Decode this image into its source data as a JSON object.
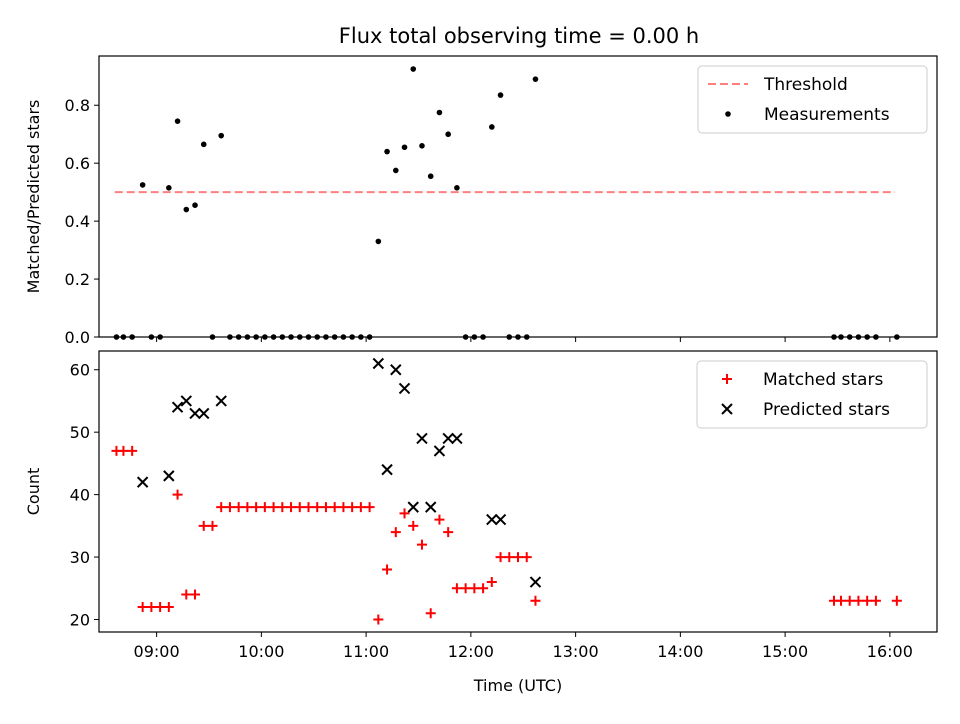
{
  "title": "Flux total observing time = 0.00 h",
  "chart_data": [
    {
      "type": "scatter",
      "ylabel": "Matched/Predicted stars",
      "xlim": [
        "08:27",
        "16:27"
      ],
      "ylim": [
        0,
        0.97
      ],
      "yticks": [
        "0.0",
        "0.2",
        "0.4",
        "0.6",
        "0.8"
      ],
      "grid": false,
      "legend_position": "top-right",
      "series": [
        {
          "name": "Threshold",
          "style": "dashed-line",
          "color": "#ff7f7f",
          "x": [
            "08:36",
            "16:03"
          ],
          "y": [
            0.5,
            0.5
          ]
        },
        {
          "name": "Measurements",
          "style": "dot",
          "color": "#000000",
          "x": [
            "08:37",
            "08:41",
            "08:46",
            "08:52",
            "08:57",
            "09:02",
            "09:07",
            "09:12",
            "09:17",
            "09:22",
            "09:27",
            "09:32",
            "09:37",
            "09:42",
            "09:47",
            "09:52",
            "09:57",
            "10:02",
            "10:07",
            "10:12",
            "10:17",
            "10:22",
            "10:27",
            "10:32",
            "10:37",
            "10:42",
            "10:47",
            "10:52",
            "10:57",
            "11:02",
            "11:07",
            "11:12",
            "11:17",
            "11:22",
            "11:27",
            "11:32",
            "11:37",
            "11:42",
            "11:47",
            "11:52",
            "11:57",
            "12:02",
            "12:07",
            "12:12",
            "12:17",
            "12:22",
            "12:27",
            "12:32",
            "12:37",
            "15:28",
            "15:32",
            "15:37",
            "15:42",
            "15:47",
            "15:52",
            "16:04"
          ],
          "y": [
            0,
            0,
            0,
            0.525,
            0,
            0,
            0.515,
            0.745,
            0.44,
            0.455,
            0.665,
            0,
            0.695,
            0,
            0,
            0,
            0,
            0,
            0,
            0,
            0,
            0,
            0,
            0,
            0,
            0,
            0,
            0,
            0,
            0,
            0.33,
            0.64,
            0.575,
            0.655,
            0.925,
            0.66,
            0.555,
            0.775,
            0.7,
            0.515,
            0,
            0,
            0,
            0.725,
            0.835,
            0,
            0,
            0,
            0.89,
            0,
            0,
            0,
            0,
            0,
            0,
            0
          ]
        }
      ]
    },
    {
      "type": "scatter",
      "xlabel": "Time (UTC)",
      "ylabel": "Count",
      "xlim": [
        "08:27",
        "16:27"
      ],
      "ylim": [
        18,
        63
      ],
      "xticks": [
        "09:00",
        "10:00",
        "11:00",
        "12:00",
        "13:00",
        "14:00",
        "15:00",
        "16:00"
      ],
      "yticks": [
        "20",
        "30",
        "40",
        "50",
        "60"
      ],
      "grid": false,
      "legend_position": "top-right",
      "series": [
        {
          "name": "Matched stars",
          "style": "plus",
          "color": "#ff0000",
          "x": [
            "08:37",
            "08:41",
            "08:46",
            "08:52",
            "08:57",
            "09:02",
            "09:07",
            "09:12",
            "09:17",
            "09:22",
            "09:27",
            "09:32",
            "09:37",
            "09:42",
            "09:47",
            "09:52",
            "09:57",
            "10:02",
            "10:07",
            "10:12",
            "10:17",
            "10:22",
            "10:27",
            "10:32",
            "10:37",
            "10:42",
            "10:47",
            "10:52",
            "10:57",
            "11:02",
            "11:07",
            "11:12",
            "11:17",
            "11:22",
            "11:27",
            "11:32",
            "11:37",
            "11:42",
            "11:47",
            "11:52",
            "11:57",
            "12:02",
            "12:07",
            "12:12",
            "12:17",
            "12:22",
            "12:27",
            "12:32",
            "12:37",
            "15:28",
            "15:32",
            "15:37",
            "15:42",
            "15:47",
            "15:52",
            "16:04"
          ],
          "y": [
            47,
            47,
            47,
            22,
            22,
            22,
            22,
            40,
            24,
            24,
            35,
            35,
            38,
            38,
            38,
            38,
            38,
            38,
            38,
            38,
            38,
            38,
            38,
            38,
            38,
            38,
            38,
            38,
            38,
            38,
            20,
            28,
            34,
            37,
            35,
            32,
            21,
            36,
            34,
            25,
            25,
            25,
            25,
            26,
            30,
            30,
            30,
            30,
            23,
            23,
            23,
            23,
            23,
            23,
            23,
            23
          ]
        },
        {
          "name": "Predicted stars",
          "style": "x",
          "color": "#000000",
          "x": [
            "08:52",
            "09:07",
            "09:12",
            "09:17",
            "09:22",
            "09:27",
            "09:37",
            "11:07",
            "11:12",
            "11:17",
            "11:22",
            "11:27",
            "11:32",
            "11:37",
            "11:42",
            "11:47",
            "11:52",
            "12:12",
            "12:17",
            "12:37"
          ],
          "y": [
            42,
            43,
            54,
            55,
            53,
            53,
            55,
            61,
            44,
            60,
            57,
            38,
            49,
            38,
            47,
            49,
            49,
            36,
            36,
            26
          ]
        }
      ]
    }
  ]
}
